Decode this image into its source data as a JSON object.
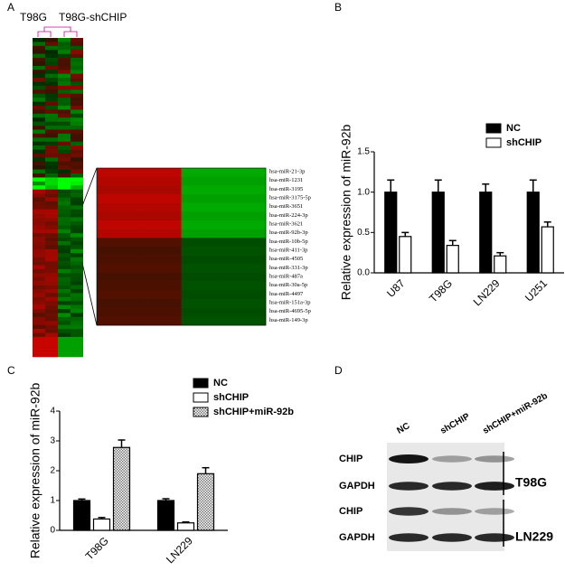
{
  "panels": [
    "A",
    "B",
    "C",
    "D"
  ],
  "heatmap": {
    "groups": [
      "T98G",
      "T98G-shCHIP"
    ],
    "labels": [
      "hsa-miR-21-3p",
      "hsa-miR-1231",
      "hsa-miR-3195",
      "hsa-miR-3175-5p",
      "hsa-miR-3651",
      "hsa-miR-224-3p",
      "hsa-miR-3621",
      "hsa-miR-92b-3p",
      "hsa-miR-10b-5p",
      "hsa-miR-411-3p",
      "hsa-miR-4505",
      "hsa-miR-331-3p",
      "hsa-miR-487a",
      "hsa-miR-30a-5p",
      "hsa-miR-4497",
      "hsa-miR-151a-3p",
      "hsa-miR-4695-5p",
      "hsa-miR-149-3p"
    ]
  },
  "chart_data": [
    {
      "type": "bar",
      "ylabel": "Relative expression of miR-92b",
      "categories": [
        "U87",
        "T98G",
        "LN229",
        "U251"
      ],
      "series": [
        {
          "name": "NC",
          "color": "#000000",
          "values": [
            1,
            1,
            1,
            1
          ],
          "errors": [
            0.15,
            0.15,
            0.1,
            0.15
          ]
        },
        {
          "name": "shCHIP",
          "color": "#ffffff",
          "values": [
            0.45,
            0.34,
            0.21,
            0.57
          ],
          "errors": [
            0.05,
            0.06,
            0.04,
            0.06
          ]
        }
      ],
      "ylim": [
        0,
        1.5
      ],
      "yticks": [
        {
          "value": 0,
          "label": "0.0"
        },
        0.5,
        {
          "value": 1,
          "label": "1.0"
        },
        1.5
      ]
    },
    {
      "type": "bar",
      "ylabel": "Relative expression of miR-92b",
      "categories": [
        "T98G",
        "LN229"
      ],
      "series": [
        {
          "name": "NC",
          "color": "#000000",
          "values": [
            1,
            1
          ],
          "errors": [
            0.05,
            0.06
          ]
        },
        {
          "name": "shCHIP",
          "color": "#ffffff",
          "values": [
            0.38,
            0.25
          ],
          "errors": [
            0.05,
            0.03
          ]
        },
        {
          "name": "shCHIP+miR-92b",
          "color": "#bbbbbb",
          "hatch": true,
          "values": [
            2.78,
            1.9
          ],
          "errors": [
            0.25,
            0.2
          ]
        }
      ],
      "ylim": [
        0,
        4
      ],
      "yticks": [
        0,
        1,
        2,
        3,
        4
      ]
    }
  ],
  "blot": {
    "columns": [
      "NC",
      "shCHIP",
      "shCHIP+miR-92b"
    ],
    "rows": [
      "CHIP",
      "GAPDH",
      "CHIP",
      "GAPDH"
    ],
    "cell_lines": [
      "T98G",
      "LN229"
    ]
  }
}
